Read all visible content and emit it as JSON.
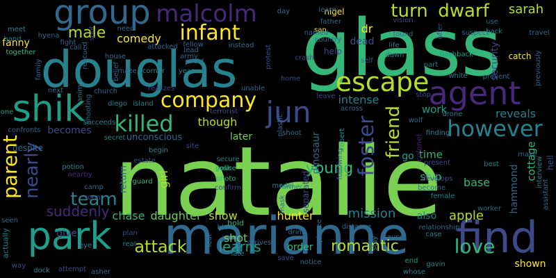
{
  "background": "#000000",
  "palette": [
    "#440154",
    "#482878",
    "#3e4989",
    "#31688e",
    "#26828e",
    "#1f9e89",
    "#35b779",
    "#6ece58",
    "#b5de2b",
    "#fde725"
  ],
  "words": [
    "natalie",
    "glass",
    "douglas",
    "marianne",
    "find",
    "park",
    "group",
    "shik",
    "agent",
    "escape",
    "malcolm",
    "infant",
    "jun",
    "company",
    "killed",
    "however",
    "parent",
    "foster",
    "friend",
    "turn",
    "dwarf",
    "sarah",
    "nearly",
    "team",
    "attack",
    "learns",
    "love",
    "romantic",
    "mission",
    "apple",
    "suddenly",
    "male",
    "comedy",
    "chase",
    "daughter",
    "show",
    "hunter",
    "shot",
    "hold",
    "blake",
    "though",
    "later",
    "young",
    "intense",
    "work",
    "time",
    "ship",
    "base",
    "cottage",
    "hammond",
    "reveals",
    "security",
    "dinosaur",
    "separated",
    "return",
    "girl",
    "give",
    "becomes",
    "unconscious",
    "nigel",
    "dr",
    "dead",
    "help",
    "also",
    "order",
    "shown",
    "go",
    "colonel",
    "fanny",
    "together",
    "meet",
    "hand",
    "confronts",
    "despite",
    "one",
    "seen",
    "actually",
    "way",
    "dock",
    "attempt",
    "asher",
    "eye",
    "real",
    "plan",
    "soon",
    "camp",
    "potion",
    "estate",
    "guard",
    "josh",
    "photo",
    "model",
    "drink",
    "employee",
    "save",
    "notice",
    "arrives",
    "late",
    "leaf",
    "mask",
    "former",
    "robert",
    "distance",
    "stay",
    "cause",
    "whose",
    "gavin",
    "end",
    "case",
    "relationship",
    "worker",
    "become",
    "develops",
    "present",
    "best",
    "make",
    "interview",
    "assistant",
    "hell",
    "prevent",
    "white",
    "drone",
    "finding",
    "wolf",
    "stop",
    "flashback",
    "part",
    "catch",
    "travel",
    "suspect",
    "previously",
    "back",
    "use",
    "offer",
    "vision",
    "found",
    "dawn",
    "life",
    "country",
    "crash",
    "protest",
    "home",
    "leave",
    "across",
    "plastic",
    "shoot",
    "terrorist",
    "secure",
    "police",
    "confirm",
    "site",
    "secret",
    "succeeds",
    "island",
    "diego",
    "shooting",
    "animal",
    "next",
    "church",
    "unable",
    "realizes",
    "corner",
    "year",
    "could",
    "army",
    "lead",
    "fellow",
    "house",
    "call",
    "fight",
    "hyena",
    "spot",
    "need",
    "attacked",
    "instead",
    "san",
    "rescued",
    "belief",
    "maze",
    "begin",
    "named",
    "father",
    "learn",
    "day",
    "self",
    "female",
    "nearby",
    "following",
    "family",
    "take",
    "fight"
  ]
}
